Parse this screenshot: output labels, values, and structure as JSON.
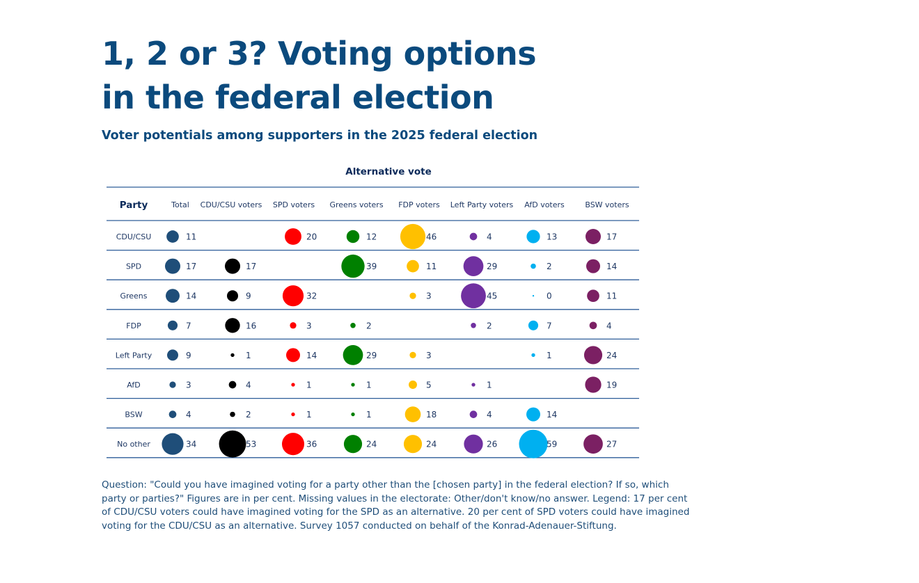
{
  "title_lines": [
    "1, 2 or 3? Voting options",
    "in the federal election"
  ],
  "subtitle": "Voter potentials among supporters in the 2025 federal election",
  "footnote": "Question: \"Could you have imagined voting for a party other than the [chosen party] in the federal election? If so, which party or parties?\" Figures are in per cent. Missing values in the electorate: Other/don't know/no answer. Legend: 17 per cent of CDU/CSU voters could have imagined voting for the SPD as an alternative. 20 per cent of SPD voters could have imagined voting for the CDU/CSU as an alternative. Survey 1057 conducted on behalf of the Konrad-Adenauer-Stiftung.",
  "chart_data": {
    "type": "table",
    "subtype": "bubble-matrix",
    "title": "Alternative vote",
    "row_header": "Party",
    "columns": [
      {
        "label": "Total",
        "color": "#1f4e79"
      },
      {
        "label": "CDU/CSU voters",
        "color": "#000000"
      },
      {
        "label": "SPD voters",
        "color": "#ff0000"
      },
      {
        "label": "Greens voters",
        "color": "#008000"
      },
      {
        "label": "FDP voters",
        "color": "#ffc000"
      },
      {
        "label": "Left Party voters",
        "color": "#7030a0"
      },
      {
        "label": "AfD voters",
        "color": "#00b0f0"
      },
      {
        "label": "BSW voters",
        "color": "#7b2063"
      }
    ],
    "rows": [
      {
        "label": "CDU/CSU",
        "values": [
          11,
          null,
          20,
          12,
          46,
          4,
          13,
          17
        ]
      },
      {
        "label": "SPD",
        "values": [
          17,
          17,
          null,
          39,
          11,
          29,
          2,
          14
        ]
      },
      {
        "label": "Greens",
        "values": [
          14,
          9,
          32,
          null,
          3,
          45,
          0,
          11
        ]
      },
      {
        "label": "FDP",
        "values": [
          7,
          16,
          3,
          2,
          null,
          2,
          7,
          4
        ]
      },
      {
        "label": "Left Party",
        "values": [
          9,
          1,
          14,
          29,
          3,
          null,
          1,
          24
        ]
      },
      {
        "label": "AfD",
        "values": [
          3,
          4,
          1,
          1,
          5,
          1,
          null,
          19
        ]
      },
      {
        "label": "BSW",
        "values": [
          4,
          2,
          1,
          1,
          18,
          4,
          14,
          null
        ]
      },
      {
        "label": "No other",
        "values": [
          34,
          53,
          36,
          24,
          24,
          26,
          59,
          27
        ]
      }
    ],
    "max_value": 59
  }
}
